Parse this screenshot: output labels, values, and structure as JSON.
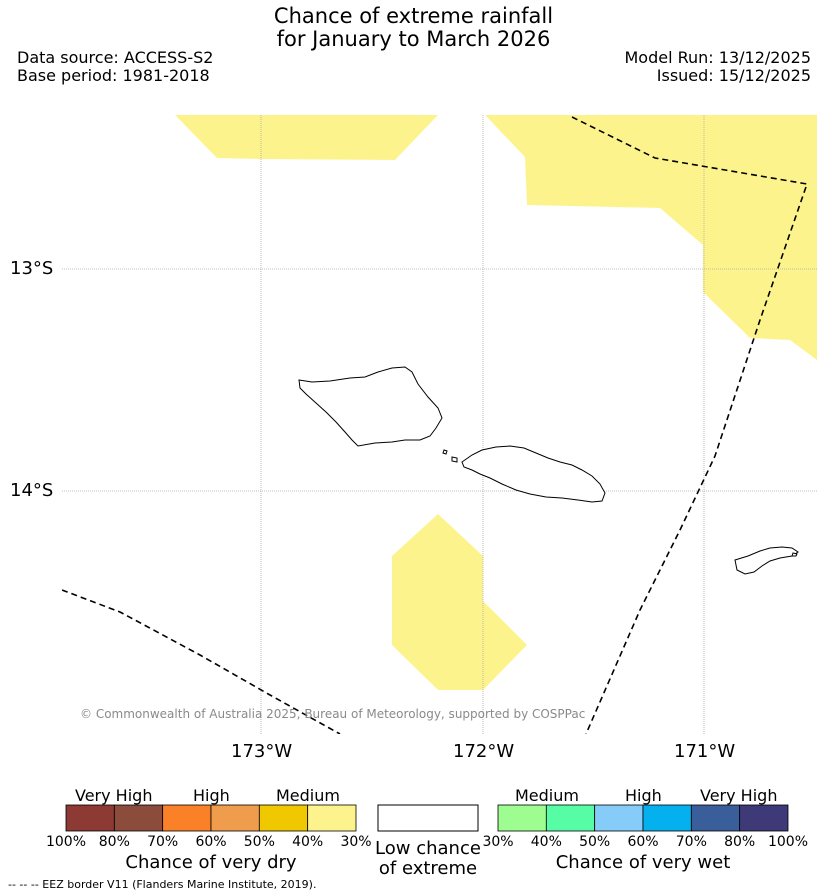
{
  "title_line1": "Chance of extreme rainfall",
  "title_line2": "for January to March 2026",
  "data_source": "Data source: ACCESS-S2",
  "base_period": "Base period: 1981-2018",
  "model_run": "Model Run: 13/12/2025",
  "issued": "Issued: 15/12/2025",
  "map": {
    "lat_ticks": [
      "13°S",
      "14°S"
    ],
    "lon_ticks": [
      "173°W",
      "172°W",
      "171°W"
    ],
    "copyright": "© Commonwealth of Australia 2025, Bureau of Meteorology, supported by COSPPac",
    "land_outline_color": "#000000",
    "eez_line_color": "#000000",
    "shade_color": "#fdf38d"
  },
  "legend": {
    "dry": {
      "group_labels": [
        "Very High",
        "High",
        "Medium"
      ],
      "ticks": [
        "100%",
        "80%",
        "70%",
        "60%",
        "50%",
        "40%",
        "30%"
      ],
      "colors": [
        "#8c3a33",
        "#8b4c3c",
        "#fb8128",
        "#ef9c4c",
        "#efc800",
        "#fdf38d"
      ],
      "caption": "Chance of very dry"
    },
    "neutral": {
      "caption_line1": "Low chance",
      "caption_line2": "of extreme",
      "color": "#ffffff"
    },
    "wet": {
      "group_labels": [
        "Medium",
        "High",
        "Very High"
      ],
      "ticks": [
        "30%",
        "40%",
        "50%",
        "60%",
        "70%",
        "80%",
        "100%"
      ],
      "colors": [
        "#9efd90",
        "#57fda4",
        "#86ccf8",
        "#05b0ef",
        "#3a5e9a",
        "#3e3a78"
      ],
      "caption": "Chance of very wet"
    }
  },
  "footer": "--  --  -- EEZ border V11 (Flanders Marine Institute, 2019)."
}
